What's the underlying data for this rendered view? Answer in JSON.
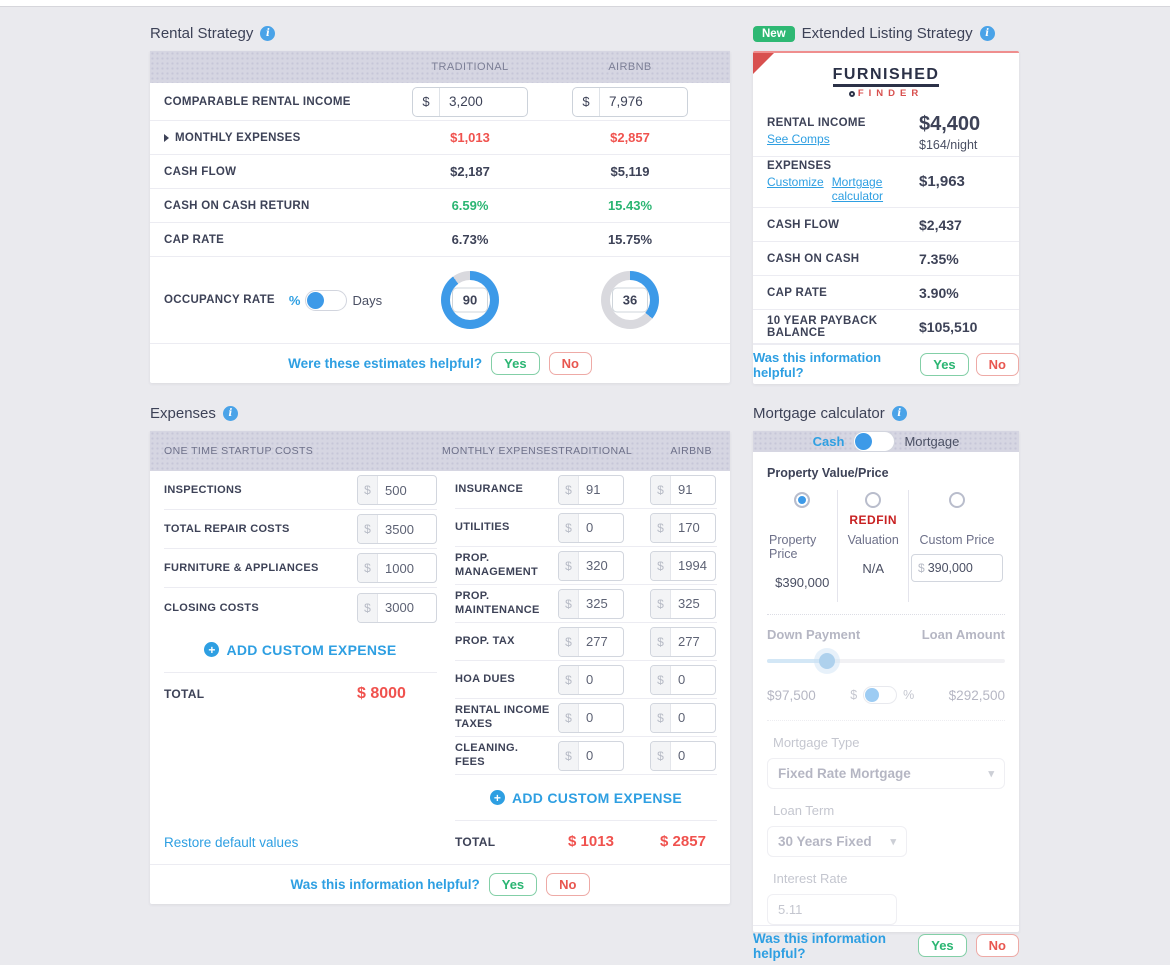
{
  "colors": {
    "donut_blue": "#3d9ae8",
    "donut_gray": "#d9d9de",
    "accent_blue": "#2e9fe2",
    "red": "#f0524e",
    "green": "#2ab572",
    "badge_green": "#2eb873",
    "redfin_red": "#c82021"
  },
  "rental_strategy": {
    "title": "Rental Strategy",
    "col_traditional": "TRADITIONAL",
    "col_airbnb": "AIRBNB",
    "income_row": {
      "label": "COMPARABLE RENTAL INCOME",
      "currency": "$",
      "traditional": "3,200",
      "airbnb": "7,976"
    },
    "rows": [
      {
        "label": "MONTHLY EXPENSES",
        "traditional": "$1,013",
        "airbnb": "$2,857"
      },
      {
        "label": "CASH FLOW",
        "traditional": "$2,187",
        "airbnb": "$5,119"
      },
      {
        "label": "CASH ON CASH RETURN",
        "traditional": "6.59%",
        "airbnb": "15.43%"
      },
      {
        "label": "CAP RATE",
        "traditional": "6.73%",
        "airbnb": "15.75%"
      }
    ],
    "occupancy": {
      "label": "OCCUPANCY RATE",
      "toggle_left": "%",
      "toggle_right": "Days",
      "traditional": {
        "value": "90",
        "percent": 90
      },
      "airbnb": {
        "value": "36",
        "percent": 36
      }
    },
    "footer": {
      "question": "Were these estimates helpful?",
      "yes": "Yes",
      "no": "No"
    }
  },
  "extended_listing": {
    "badge": "New",
    "title": "Extended Listing Strategy",
    "logo_line1": "FURNISHED",
    "logo_line2": "FINDER",
    "rental_income": {
      "label": "RENTAL INCOME",
      "link": "See Comps",
      "value": "$4,400",
      "sub_value": "$164/night"
    },
    "expenses": {
      "label": "EXPENSES",
      "link1": "Customize",
      "link2": "Mortgage calculator",
      "value": "$1,963"
    },
    "rows": [
      {
        "label": "CASH FLOW",
        "value": "$2,437"
      },
      {
        "label": "CASH ON CASH",
        "value": "7.35%"
      },
      {
        "label": "CAP RATE",
        "value": "3.90%"
      },
      {
        "label": "10 YEAR PAYBACK BALANCE",
        "value": "$105,510"
      }
    ],
    "footer": {
      "question": "Was this information helpful?",
      "yes": "Yes",
      "no": "No"
    }
  },
  "expenses_panel": {
    "title": "Expenses",
    "startup_header": "ONE TIME STARTUP COSTS",
    "monthly_header": "MONTHLY EXPENSES",
    "col_traditional": "TRADITIONAL",
    "col_airbnb": "AIRBNB",
    "currency": "$",
    "startup_rows": [
      {
        "label": "INSPECTIONS",
        "value": "500"
      },
      {
        "label": "TOTAL REPAIR COSTS",
        "value": "3500"
      },
      {
        "label": "FURNITURE & APPLIANCES",
        "value": "1000"
      },
      {
        "label": "CLOSING COSTS",
        "value": "3000"
      }
    ],
    "add_custom": "ADD CUSTOM EXPENSE",
    "startup_total": {
      "label": "TOTAL",
      "value": "$ 8000"
    },
    "monthly_rows": [
      {
        "label": "INSURANCE",
        "traditional": "91",
        "airbnb": "91"
      },
      {
        "label": "UTILITIES",
        "traditional": "0",
        "airbnb": "170"
      },
      {
        "label": "PROP. MANAGEMENT",
        "traditional": "320",
        "airbnb": "1994"
      },
      {
        "label": "PROP. MAINTENANCE",
        "traditional": "325",
        "airbnb": "325"
      },
      {
        "label": "PROP. TAX",
        "traditional": "277",
        "airbnb": "277"
      },
      {
        "label": "HOA DUES",
        "traditional": "0",
        "airbnb": "0"
      },
      {
        "label": "RENTAL INCOME TAXES",
        "traditional": "0",
        "airbnb": "0"
      },
      {
        "label": "CLEANING. FEES",
        "traditional": "0",
        "airbnb": "0"
      }
    ],
    "monthly_total": {
      "label": "TOTAL",
      "traditional": "$ 1013",
      "airbnb": "$ 2857"
    },
    "restore_link": "Restore default values",
    "footer": {
      "question": "Was this information helpful?",
      "yes": "Yes",
      "no": "No"
    }
  },
  "mortgage": {
    "title": "Mortgage calculator",
    "toggle_left": "Cash",
    "toggle_right": "Mortgage",
    "property_section": {
      "label": "Property Value/Price",
      "options": [
        {
          "label": "Property Price",
          "value": "$390,000"
        },
        {
          "label": "Valuation",
          "value": "N/A",
          "logo": "REDFIN"
        },
        {
          "label": "Custom Price",
          "currency": "$",
          "value": "390,000"
        }
      ]
    },
    "down_payment": {
      "label": "Down Payment",
      "loan_label": "Loan Amount",
      "amount": "$97,500",
      "loan_amount": "$292,500",
      "toggle_left": "$",
      "toggle_right": "%",
      "slider_percent": 25
    },
    "mortgage_type": {
      "label": "Mortgage Type",
      "value": "Fixed Rate Mortgage"
    },
    "loan_term": {
      "label": "Loan Term",
      "value": "30 Years Fixed"
    },
    "interest_rate": {
      "label": "Interest Rate",
      "value": "5.11"
    },
    "footer": {
      "question": "Was this information helpful?",
      "yes": "Yes",
      "no": "No"
    }
  }
}
